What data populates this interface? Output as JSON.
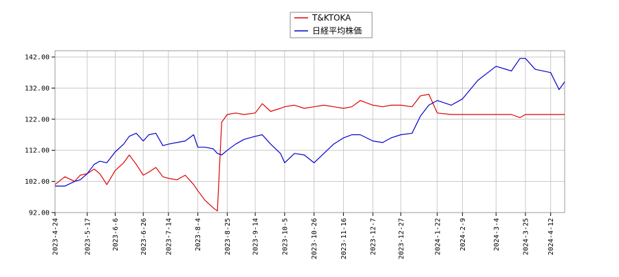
{
  "chart_data": {
    "type": "line",
    "title": "",
    "xlabel": "",
    "ylabel": "",
    "ylim": [
      92,
      144
    ],
    "yticks": [
      92,
      102,
      112,
      122,
      132,
      142
    ],
    "ytick_labels": [
      "92.00",
      "102.00",
      "112.00",
      "122.00",
      "132.00",
      "142.00"
    ],
    "x_ticks": [
      "2023-4-24",
      "2023-5-17",
      "2023-6-6",
      "2023-6-26",
      "2023-7-14",
      "2023-8-4",
      "2023-8-25",
      "2023-9-14",
      "2023-10-5",
      "2023-10-26",
      "2023-11-16",
      "2023-12-7",
      "2023-12-27",
      "2024-1-22",
      "2024-2-9",
      "2024-3-4",
      "2024-3-25",
      "2024-4-12"
    ],
    "grid": true,
    "legend_position": "top-center",
    "series": [
      {
        "name": "T&KTOKA",
        "color": "#dd0000",
        "points": [
          [
            "2023-4-24",
            101
          ],
          [
            "2023-5-1",
            103.5
          ],
          [
            "2023-5-8",
            102
          ],
          [
            "2023-5-12",
            104
          ],
          [
            "2023-5-17",
            104.5
          ],
          [
            "2023-5-22",
            106
          ],
          [
            "2023-5-26",
            104.5
          ],
          [
            "2023-5-31",
            101
          ],
          [
            "2023-6-6",
            105.5
          ],
          [
            "2023-6-12",
            108
          ],
          [
            "2023-6-16",
            110.5
          ],
          [
            "2023-6-21",
            107.5
          ],
          [
            "2023-6-26",
            104
          ],
          [
            "2023-6-30",
            105
          ],
          [
            "2023-7-5",
            106.5
          ],
          [
            "2023-7-10",
            103.5
          ],
          [
            "2023-7-14",
            103
          ],
          [
            "2023-7-20",
            102.5
          ],
          [
            "2023-7-26",
            104
          ],
          [
            "2023-8-1",
            101
          ],
          [
            "2023-8-4",
            99
          ],
          [
            "2023-8-9",
            96
          ],
          [
            "2023-8-15",
            93.5
          ],
          [
            "2023-8-18",
            92.5
          ],
          [
            "2023-8-21",
            121
          ],
          [
            "2023-8-25",
            123.5
          ],
          [
            "2023-8-31",
            124
          ],
          [
            "2023-9-6",
            123.5
          ],
          [
            "2023-9-14",
            124
          ],
          [
            "2023-9-19",
            127
          ],
          [
            "2023-9-25",
            124.5
          ],
          [
            "2023-10-2",
            125.5
          ],
          [
            "2023-10-5",
            126
          ],
          [
            "2023-10-12",
            126.5
          ],
          [
            "2023-10-19",
            125.5
          ],
          [
            "2023-10-26",
            126
          ],
          [
            "2023-11-2",
            126.5
          ],
          [
            "2023-11-9",
            126
          ],
          [
            "2023-11-16",
            125.5
          ],
          [
            "2023-11-22",
            126
          ],
          [
            "2023-11-28",
            128
          ],
          [
            "2023-12-7",
            126.5
          ],
          [
            "2023-12-14",
            126
          ],
          [
            "2023-12-20",
            126.5
          ],
          [
            "2023-12-27",
            126.5
          ],
          [
            "2024-1-4",
            126
          ],
          [
            "2024-1-10",
            129.5
          ],
          [
            "2024-1-16",
            130
          ],
          [
            "2024-1-22",
            124
          ],
          [
            "2024-2-1",
            123.5
          ],
          [
            "2024-2-9",
            123.5
          ],
          [
            "2024-2-20",
            123.5
          ],
          [
            "2024-3-4",
            123.5
          ],
          [
            "2024-3-15",
            123.5
          ],
          [
            "2024-3-21",
            122.5
          ],
          [
            "2024-3-25",
            123.5
          ],
          [
            "2024-4-1",
            123.5
          ],
          [
            "2024-4-12",
            123.5
          ],
          [
            "2024-4-22",
            123.5
          ]
        ]
      },
      {
        "name": "日経平均株価",
        "color": "#0000cc",
        "points": [
          [
            "2023-4-24",
            100.5
          ],
          [
            "2023-5-1",
            100.5
          ],
          [
            "2023-5-8",
            102
          ],
          [
            "2023-5-12",
            102.5
          ],
          [
            "2023-5-17",
            104.5
          ],
          [
            "2023-5-22",
            107.5
          ],
          [
            "2023-5-26",
            108.5
          ],
          [
            "2023-5-31",
            108
          ],
          [
            "2023-6-6",
            111.5
          ],
          [
            "2023-6-12",
            114
          ],
          [
            "2023-6-16",
            116.5
          ],
          [
            "2023-6-21",
            117.5
          ],
          [
            "2023-6-26",
            115
          ],
          [
            "2023-6-30",
            117
          ],
          [
            "2023-7-5",
            117.5
          ],
          [
            "2023-7-10",
            113.5
          ],
          [
            "2023-7-14",
            114
          ],
          [
            "2023-7-20",
            114.5
          ],
          [
            "2023-7-26",
            115
          ],
          [
            "2023-8-1",
            117
          ],
          [
            "2023-8-4",
            113
          ],
          [
            "2023-8-9",
            113
          ],
          [
            "2023-8-15",
            112.5
          ],
          [
            "2023-8-18",
            111
          ],
          [
            "2023-8-21",
            110.5
          ],
          [
            "2023-8-25",
            112
          ],
          [
            "2023-8-31",
            114
          ],
          [
            "2023-9-6",
            115.5
          ],
          [
            "2023-9-14",
            116.5
          ],
          [
            "2023-9-19",
            117
          ],
          [
            "2023-9-25",
            114
          ],
          [
            "2023-10-2",
            111
          ],
          [
            "2023-10-5",
            108
          ],
          [
            "2023-10-12",
            111
          ],
          [
            "2023-10-19",
            110.5
          ],
          [
            "2023-10-26",
            108
          ],
          [
            "2023-11-2",
            111
          ],
          [
            "2023-11-9",
            114
          ],
          [
            "2023-11-16",
            116
          ],
          [
            "2023-11-22",
            117
          ],
          [
            "2023-11-28",
            117
          ],
          [
            "2023-12-7",
            115
          ],
          [
            "2023-12-14",
            114.5
          ],
          [
            "2023-12-20",
            116
          ],
          [
            "2023-12-27",
            117
          ],
          [
            "2024-1-4",
            117.5
          ],
          [
            "2024-1-10",
            123
          ],
          [
            "2024-1-16",
            126.5
          ],
          [
            "2024-1-22",
            128
          ],
          [
            "2024-2-1",
            126.5
          ],
          [
            "2024-2-9",
            128.5
          ],
          [
            "2024-2-20",
            134.5
          ],
          [
            "2024-3-4",
            139
          ],
          [
            "2024-3-15",
            137.5
          ],
          [
            "2024-3-21",
            141.5
          ],
          [
            "2024-3-25",
            141.5
          ],
          [
            "2024-4-1",
            138
          ],
          [
            "2024-4-12",
            137
          ],
          [
            "2024-4-18",
            131.5
          ],
          [
            "2024-4-22",
            134
          ]
        ]
      }
    ]
  }
}
